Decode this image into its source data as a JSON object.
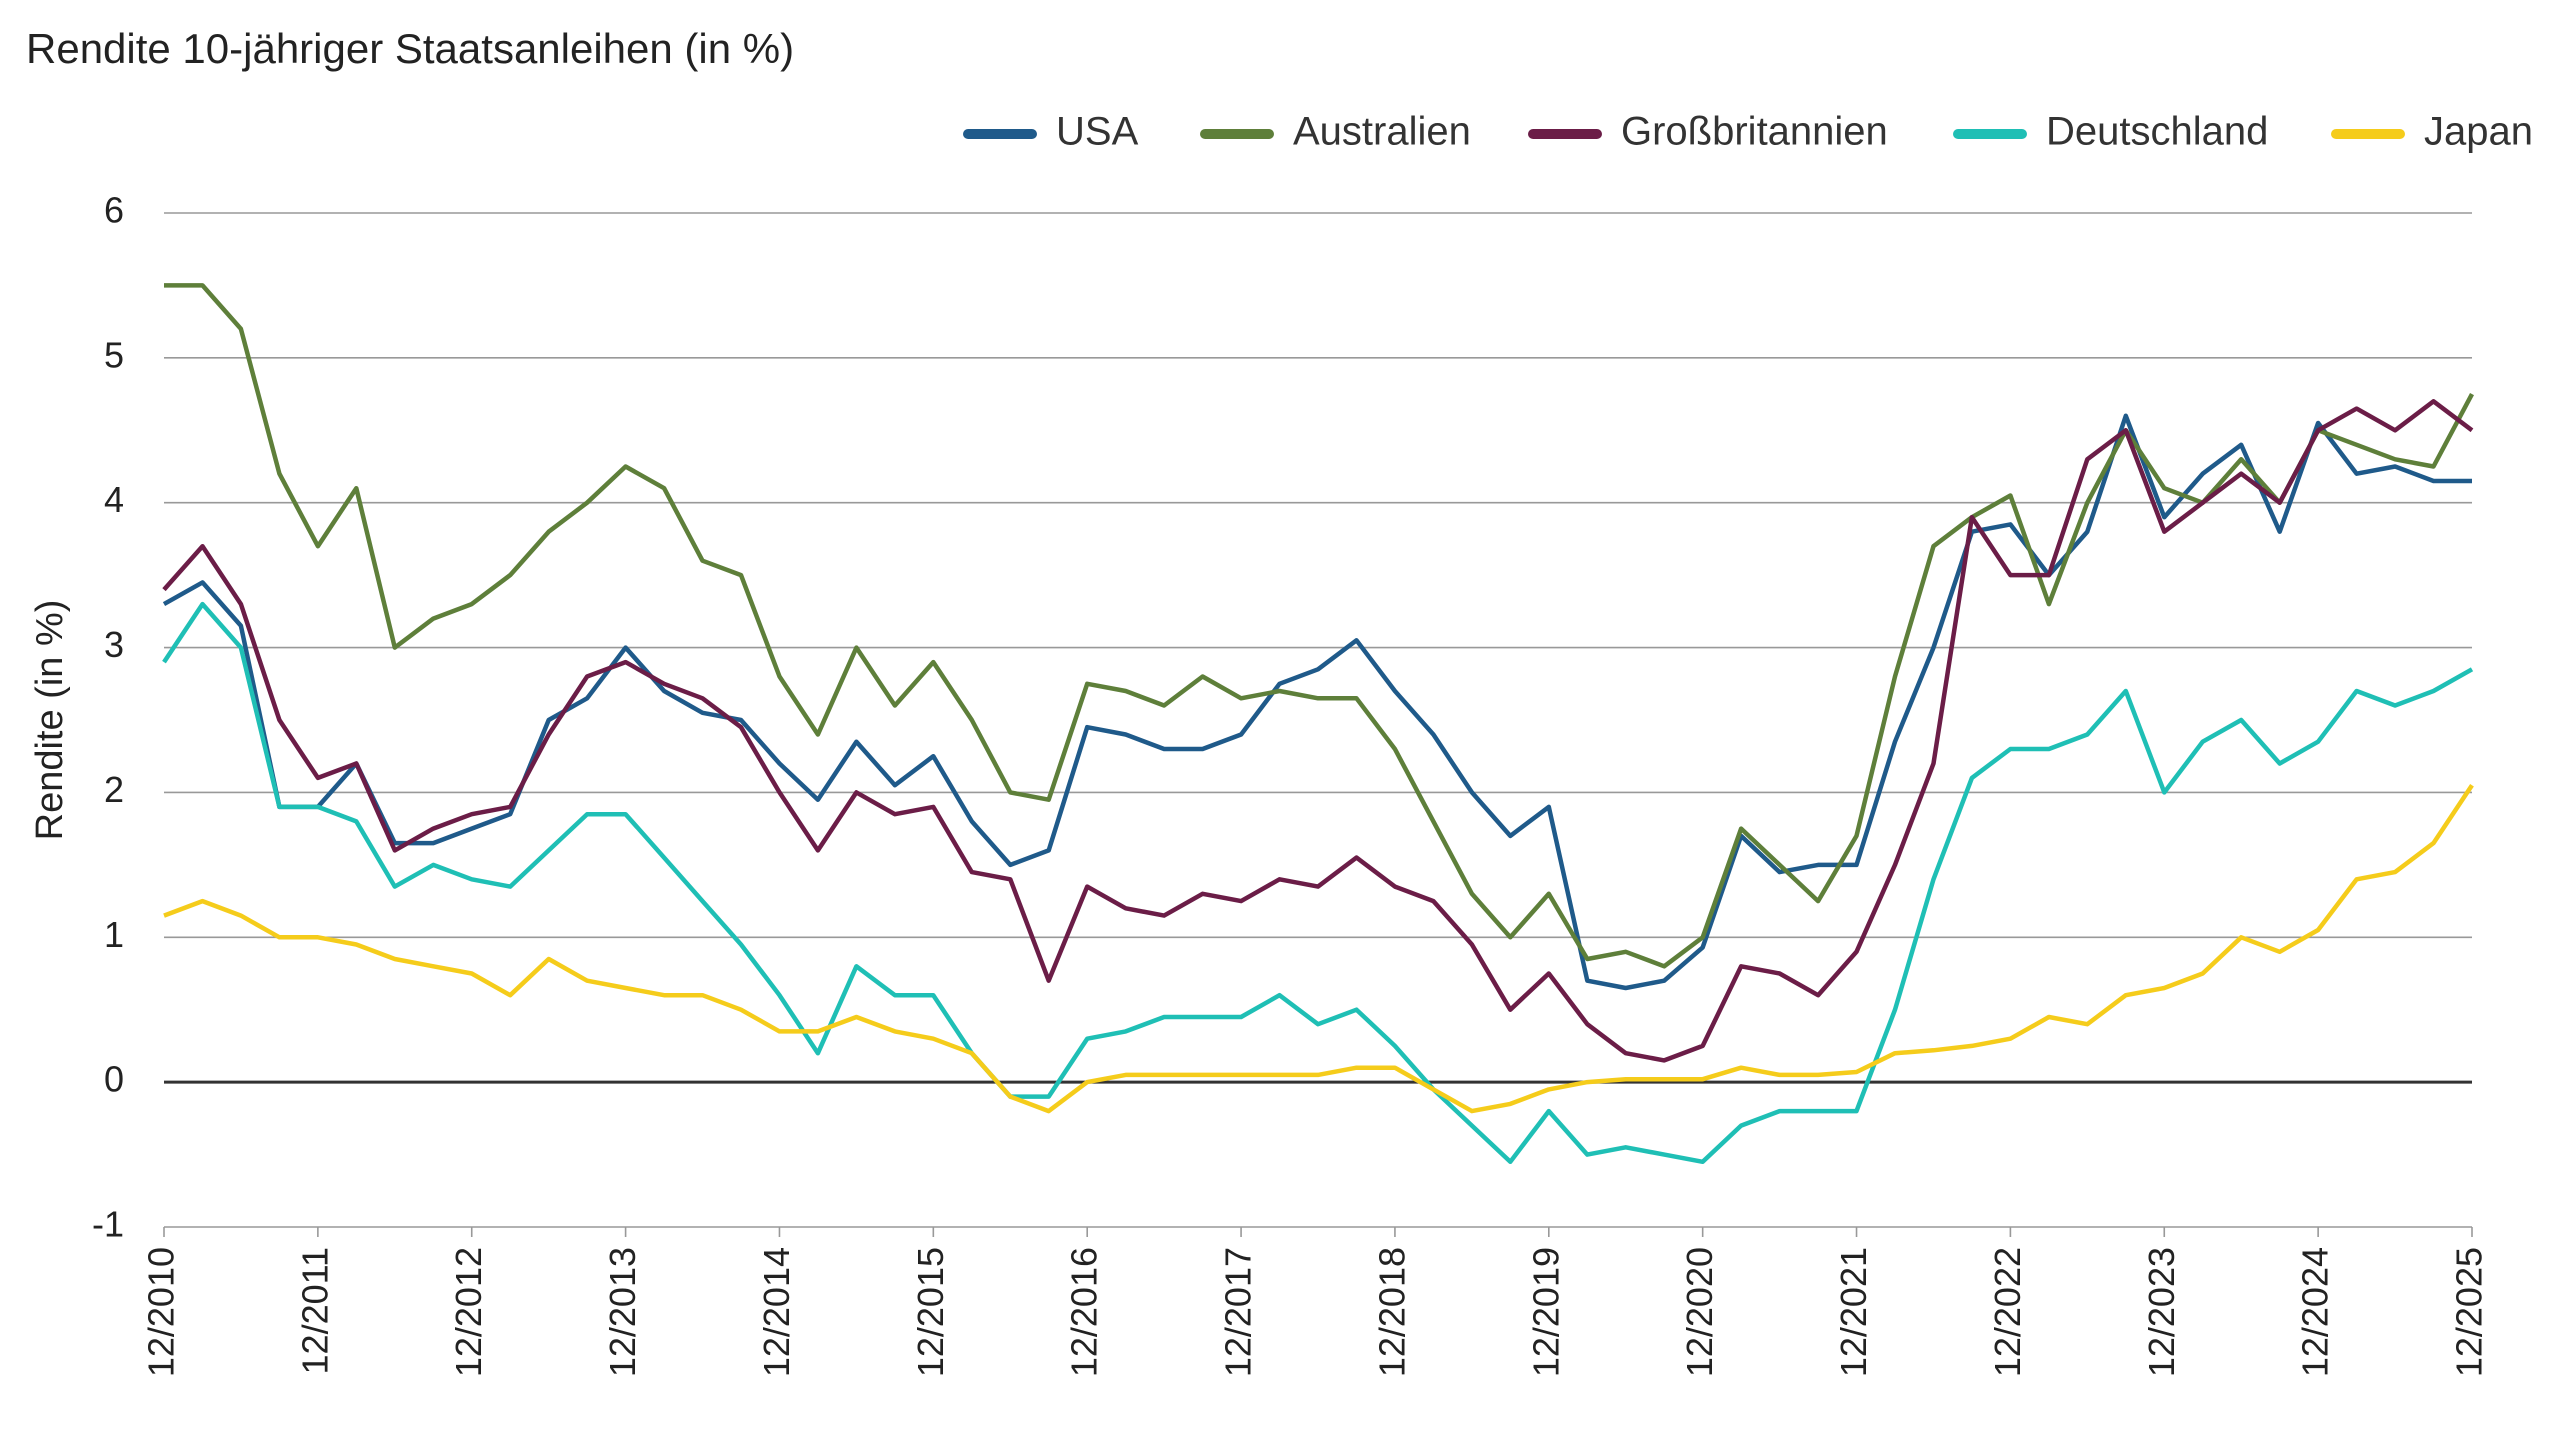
{
  "chart_data": {
    "type": "line",
    "title": "Rendite 10-jähriger Staatsanleihen (in %)",
    "y_label": "Rendite (in %)",
    "x": [
      "12/2010",
      "03/2011",
      "06/2011",
      "09/2011",
      "12/2011",
      "03/2012",
      "06/2012",
      "09/2012",
      "12/2012",
      "03/2013",
      "06/2013",
      "09/2013",
      "12/2013",
      "03/2014",
      "06/2014",
      "09/2014",
      "12/2014",
      "03/2015",
      "06/2015",
      "09/2015",
      "12/2015",
      "03/2016",
      "06/2016",
      "09/2016",
      "12/2016",
      "03/2017",
      "06/2017",
      "09/2017",
      "12/2017",
      "03/2018",
      "06/2018",
      "09/2018",
      "12/2018",
      "03/2019",
      "06/2019",
      "09/2019",
      "12/2019",
      "03/2020",
      "06/2020",
      "09/2020",
      "12/2020",
      "03/2021",
      "06/2021",
      "09/2021",
      "12/2021",
      "03/2022",
      "06/2022",
      "09/2022",
      "12/2022",
      "03/2023",
      "06/2023",
      "09/2023",
      "12/2023",
      "03/2024",
      "06/2024",
      "09/2024",
      "12/2024",
      "03/2025",
      "06/2025",
      "09/2025",
      "12/2025"
    ],
    "series": [
      {
        "name": "USA",
        "color": "#1f5a8a",
        "values": [
          3.3,
          3.45,
          3.15,
          1.9,
          1.9,
          2.2,
          1.65,
          1.65,
          1.75,
          1.85,
          2.5,
          2.65,
          3.0,
          2.7,
          2.55,
          2.5,
          2.2,
          1.95,
          2.35,
          2.05,
          2.25,
          1.8,
          1.5,
          1.6,
          2.45,
          2.4,
          2.3,
          2.3,
          2.4,
          2.75,
          2.85,
          3.05,
          2.7,
          2.4,
          2.0,
          1.7,
          1.9,
          0.7,
          0.65,
          0.7,
          0.93,
          1.7,
          1.45,
          1.5,
          1.5,
          2.35,
          3.0,
          3.8,
          3.85,
          3.5,
          3.8,
          4.6,
          3.9,
          4.2,
          4.4,
          3.8,
          4.55,
          4.2,
          4.25,
          4.15,
          4.15
        ]
      },
      {
        "name": "Australien",
        "color": "#5e7f3a",
        "values": [
          5.5,
          5.5,
          5.2,
          4.2,
          3.7,
          4.1,
          3.0,
          3.2,
          3.3,
          3.5,
          3.8,
          4.0,
          4.25,
          4.1,
          3.6,
          3.5,
          2.8,
          2.4,
          3.0,
          2.6,
          2.9,
          2.5,
          2.0,
          1.95,
          2.75,
          2.7,
          2.6,
          2.8,
          2.65,
          2.7,
          2.65,
          2.65,
          2.3,
          1.8,
          1.3,
          1.0,
          1.3,
          0.85,
          0.9,
          0.8,
          1.0,
          1.75,
          1.5,
          1.25,
          1.7,
          2.8,
          3.7,
          3.9,
          4.05,
          3.3,
          4.0,
          4.5,
          4.1,
          4.0,
          4.3,
          4.0,
          4.5,
          4.4,
          4.3,
          4.25,
          4.75
        ]
      },
      {
        "name": "Großbritannien",
        "color": "#6b1d47",
        "values": [
          3.4,
          3.7,
          3.3,
          2.5,
          2.1,
          2.2,
          1.6,
          1.75,
          1.85,
          1.9,
          2.4,
          2.8,
          2.9,
          2.75,
          2.65,
          2.45,
          2.0,
          1.6,
          2.0,
          1.85,
          1.9,
          1.45,
          1.4,
          0.7,
          1.35,
          1.2,
          1.15,
          1.3,
          1.25,
          1.4,
          1.35,
          1.55,
          1.35,
          1.25,
          0.95,
          0.5,
          0.75,
          0.4,
          0.2,
          0.15,
          0.25,
          0.8,
          0.75,
          0.6,
          0.9,
          1.5,
          2.2,
          3.9,
          3.5,
          3.5,
          4.3,
          4.5,
          3.8,
          4.0,
          4.2,
          4.0,
          4.5,
          4.65,
          4.5,
          4.7,
          4.5
        ]
      },
      {
        "name": "Deutschland",
        "color": "#1fbfb5",
        "values": [
          2.9,
          3.3,
          3.0,
          1.9,
          1.9,
          1.8,
          1.35,
          1.5,
          1.4,
          1.35,
          1.6,
          1.85,
          1.85,
          1.55,
          1.25,
          0.95,
          0.6,
          0.2,
          0.8,
          0.6,
          0.6,
          0.2,
          -0.1,
          -0.1,
          0.3,
          0.35,
          0.45,
          0.45,
          0.45,
          0.6,
          0.4,
          0.5,
          0.25,
          -0.05,
          -0.3,
          -0.55,
          -0.2,
          -0.5,
          -0.45,
          -0.5,
          -0.55,
          -0.3,
          -0.2,
          -0.2,
          -0.2,
          0.5,
          1.4,
          2.1,
          2.3,
          2.3,
          2.4,
          2.7,
          2.0,
          2.35,
          2.5,
          2.2,
          2.35,
          2.7,
          2.6,
          2.7,
          2.85
        ]
      },
      {
        "name": "Japan",
        "color": "#f5cc1b",
        "values": [
          1.15,
          1.25,
          1.15,
          1.0,
          1.0,
          0.95,
          0.85,
          0.8,
          0.75,
          0.6,
          0.85,
          0.7,
          0.65,
          0.6,
          0.6,
          0.5,
          0.35,
          0.35,
          0.45,
          0.35,
          0.3,
          0.2,
          -0.1,
          -0.2,
          0.0,
          0.05,
          0.05,
          0.05,
          0.05,
          0.05,
          0.05,
          0.1,
          0.1,
          -0.05,
          -0.2,
          -0.15,
          -0.05,
          0.0,
          0.02,
          0.02,
          0.02,
          0.1,
          0.05,
          0.05,
          0.07,
          0.2,
          0.22,
          0.25,
          0.3,
          0.45,
          0.4,
          0.6,
          0.65,
          0.75,
          1.0,
          0.9,
          1.05,
          1.4,
          1.45,
          1.65,
          2.05
        ]
      }
    ],
    "xlim": [
      "12/2010",
      "12/2025"
    ],
    "xticks": [
      "12/2010",
      "12/2011",
      "12/2012",
      "12/2013",
      "12/2014",
      "12/2015",
      "12/2016",
      "12/2017",
      "12/2018",
      "12/2019",
      "12/2020",
      "12/2021",
      "12/2022",
      "12/2023",
      "12/2024",
      "12/2025"
    ],
    "ylim": [
      -1,
      6
    ],
    "yticks": [
      -1,
      0,
      1,
      2,
      3,
      4,
      5,
      6
    ],
    "grid": true
  }
}
